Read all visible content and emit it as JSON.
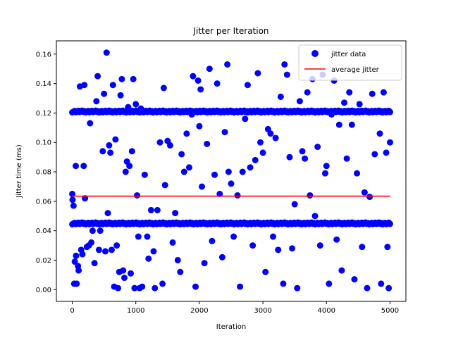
{
  "chart_data": {
    "type": "scatter",
    "title": "Jitter per Iteration",
    "xlabel": "Iteration",
    "ylabel": "Jitter time (ms)",
    "xlim": [
      -250,
      5250
    ],
    "ylim": [
      -0.008,
      0.169
    ],
    "x_ticks": [
      0,
      1000,
      2000,
      3000,
      4000,
      5000
    ],
    "x_tick_labels": [
      "0",
      "1000",
      "2000",
      "3000",
      "4000",
      "5000"
    ],
    "y_ticks": [
      0.0,
      0.02,
      0.04,
      0.06,
      0.08,
      0.1,
      0.12,
      0.14,
      0.16
    ],
    "y_tick_labels": [
      "0.00",
      "0.02",
      "0.04",
      "0.06",
      "0.08",
      "0.10",
      "0.12",
      "0.14",
      "0.16"
    ],
    "grid": false,
    "legend": {
      "placement": "top-right"
    },
    "series": [
      {
        "name": "jitter data",
        "kind": "scatter",
        "color": "#0000ff",
        "clusters": [
          {
            "x_range": [
              0,
              5000
            ],
            "y": 0.121,
            "count": 260,
            "note": "dense band"
          },
          {
            "x_range": [
              0,
              5000
            ],
            "y": 0.045,
            "count": 260,
            "note": "dense band"
          }
        ],
        "points": [
          [
            0,
            0.065
          ],
          [
            5,
            0.061
          ],
          [
            20,
            0.057
          ],
          [
            30,
            0.004
          ],
          [
            40,
            0.019
          ],
          [
            55,
            0.084
          ],
          [
            60,
            0.023
          ],
          [
            70,
            0.004
          ],
          [
            90,
            0.016
          ],
          [
            100,
            0.013
          ],
          [
            120,
            0.138
          ],
          [
            140,
            0.027
          ],
          [
            160,
            0.024
          ],
          [
            180,
            0.084
          ],
          [
            190,
            0.139
          ],
          [
            200,
            0.062
          ],
          [
            230,
            0.029
          ],
          [
            260,
            0.03
          ],
          [
            280,
            0.113
          ],
          [
            300,
            0.032
          ],
          [
            320,
            0.04
          ],
          [
            350,
            0.018
          ],
          [
            380,
            0.128
          ],
          [
            400,
            0.145
          ],
          [
            420,
            0.027
          ],
          [
            440,
            0.04
          ],
          [
            480,
            0.094
          ],
          [
            500,
            0.133
          ],
          [
            520,
            0.026
          ],
          [
            540,
            0.161
          ],
          [
            560,
            0.052
          ],
          [
            580,
            0.098
          ],
          [
            600,
            0.093
          ],
          [
            620,
            0.027
          ],
          [
            640,
            0.139
          ],
          [
            660,
            0.002
          ],
          [
            680,
            0.102
          ],
          [
            700,
            0.03
          ],
          [
            720,
            0.001
          ],
          [
            740,
            0.012
          ],
          [
            760,
            0.132
          ],
          [
            780,
            0.143
          ],
          [
            800,
            0.013
          ],
          [
            820,
            0.008
          ],
          [
            840,
            0.08
          ],
          [
            860,
            0.087
          ],
          [
            880,
            0.124
          ],
          [
            900,
            0.084
          ],
          [
            920,
            0.011
          ],
          [
            940,
            0.094
          ],
          [
            960,
            0.143
          ],
          [
            980,
            0.001
          ],
          [
            1000,
            0.126
          ],
          [
            1020,
            0.064
          ],
          [
            1040,
            0.036
          ],
          [
            1060,
            0.001
          ],
          [
            1080,
            0.123
          ],
          [
            1100,
            0.002
          ],
          [
            1140,
            0.078
          ],
          [
            1180,
            0.036
          ],
          [
            1200,
            0.021
          ],
          [
            1240,
            0.054
          ],
          [
            1280,
            0.026
          ],
          [
            1300,
            0.001
          ],
          [
            1340,
            0.054
          ],
          [
            1380,
            0.1
          ],
          [
            1420,
            0.004
          ],
          [
            1440,
            0.137
          ],
          [
            1460,
            0.071
          ],
          [
            1500,
            0.101
          ],
          [
            1540,
            0.098
          ],
          [
            1580,
            0.032
          ],
          [
            1620,
            0.052
          ],
          [
            1660,
            0.02
          ],
          [
            1700,
            0.012
          ],
          [
            1720,
            0.092
          ],
          [
            1760,
            0.08
          ],
          [
            1800,
            0.106
          ],
          [
            1840,
            0.083
          ],
          [
            1880,
            0.119
          ],
          [
            1900,
            0.145
          ],
          [
            1940,
            0.002
          ],
          [
            1980,
            0.142
          ],
          [
            2000,
            0.111
          ],
          [
            2020,
            0.136
          ],
          [
            2040,
            0.07
          ],
          [
            2080,
            0.018
          ],
          [
            2120,
            0.099
          ],
          [
            2160,
            0.15
          ],
          [
            2200,
            0.033
          ],
          [
            2240,
            0.078
          ],
          [
            2280,
            0.14
          ],
          [
            2320,
            0.065
          ],
          [
            2360,
            0.022
          ],
          [
            2400,
            0.107
          ],
          [
            2440,
            0.153
          ],
          [
            2460,
            0.08
          ],
          [
            2500,
            0.072
          ],
          [
            2540,
            0.036
          ],
          [
            2600,
            0.064
          ],
          [
            2640,
            0.002
          ],
          [
            2680,
            0.08
          ],
          [
            2720,
            0.116
          ],
          [
            2760,
            0.139
          ],
          [
            2800,
            0.083
          ],
          [
            2840,
            0.03
          ],
          [
            2880,
            0.088
          ],
          [
            2920,
            0.147
          ],
          [
            2960,
            0.1
          ],
          [
            3000,
            0.093
          ],
          [
            3040,
            0.012
          ],
          [
            3080,
            0.109
          ],
          [
            3120,
            0.106
          ],
          [
            3160,
            0.036
          ],
          [
            3200,
            0.103
          ],
          [
            3240,
            0.027
          ],
          [
            3280,
            0.131
          ],
          [
            3320,
            0.004
          ],
          [
            3340,
            0.153
          ],
          [
            3380,
            0.146
          ],
          [
            3420,
            0.09
          ],
          [
            3460,
            0.028
          ],
          [
            3500,
            0.058
          ],
          [
            3540,
            0.001
          ],
          [
            3580,
            0.128
          ],
          [
            3620,
            0.094
          ],
          [
            3660,
            0.089
          ],
          [
            3700,
            0.134
          ],
          [
            3740,
            0.064
          ],
          [
            3780,
            0.143
          ],
          [
            3820,
            0.05
          ],
          [
            3860,
            0.097
          ],
          [
            3900,
            0.03
          ],
          [
            3940,
            0.146
          ],
          [
            3980,
            0.079
          ],
          [
            4000,
            0.084
          ],
          [
            4040,
            0.004
          ],
          [
            4080,
            0.119
          ],
          [
            4120,
            0.142
          ],
          [
            4160,
            0.034
          ],
          [
            4200,
            0.112
          ],
          [
            4240,
            0.013
          ],
          [
            4280,
            0.127
          ],
          [
            4320,
            0.089
          ],
          [
            4360,
            0.134
          ],
          [
            4400,
            0.112
          ],
          [
            4440,
            0.007
          ],
          [
            4480,
            0.079
          ],
          [
            4520,
            0.126
          ],
          [
            4560,
            0.029
          ],
          [
            4600,
            0.066
          ],
          [
            4640,
            0.001
          ],
          [
            4680,
            0.063
          ],
          [
            4720,
            0.133
          ],
          [
            4760,
            0.092
          ],
          [
            4800,
            0.121
          ],
          [
            4840,
            0.106
          ],
          [
            4860,
            0.004
          ],
          [
            4900,
            0.134
          ],
          [
            4940,
            0.093
          ],
          [
            4960,
            0.029
          ],
          [
            4980,
            0.001
          ],
          [
            5000,
            0.1
          ]
        ]
      },
      {
        "name": "average jitter",
        "kind": "line",
        "color": "#ff0000",
        "x": [
          0,
          5000
        ],
        "y": [
          0.0635,
          0.0635
        ]
      }
    ]
  }
}
